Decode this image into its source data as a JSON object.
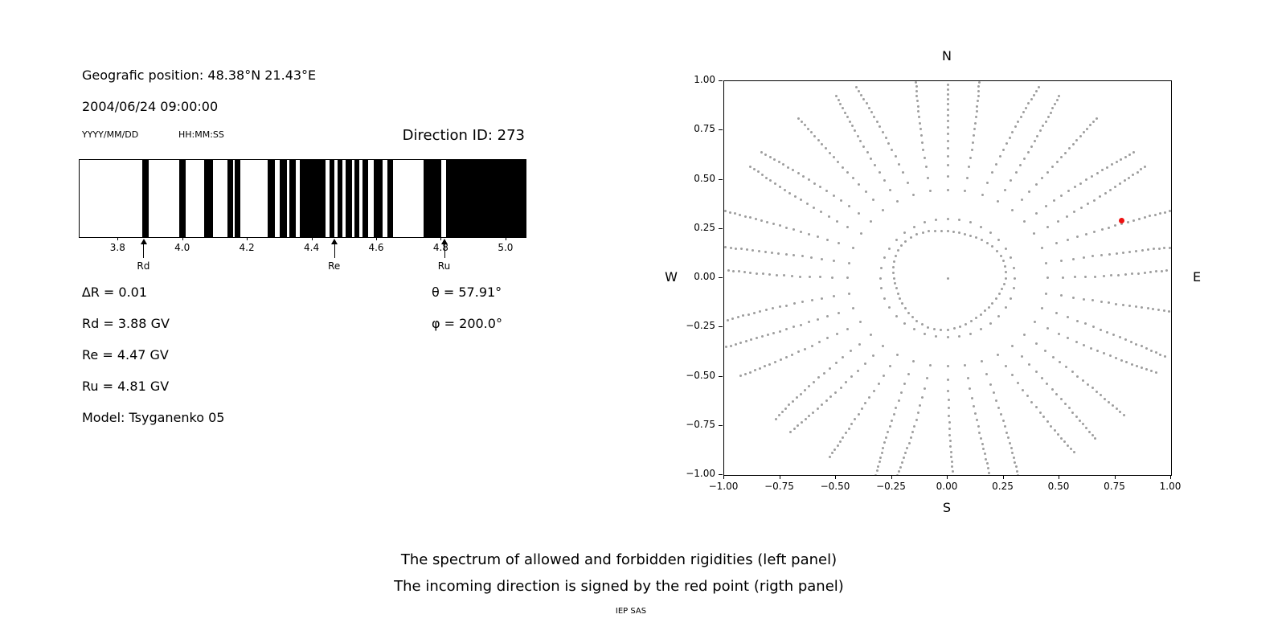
{
  "info": {
    "position": "Geografic position: 48.38°N 21.43°E",
    "datetime": "2004/06/24 09:00:00",
    "date_format_label": "YYYY/MM/DD",
    "time_format_label": "HH:MM:SS",
    "direction_id": "Direction ID: 273",
    "delta_r": "∆R = 0.01",
    "rd": "Rd = 3.88 GV",
    "re": "Re = 4.47 GV",
    "ru": "Ru = 4.81 GV",
    "model": "Model: Tsyganenko 05",
    "theta": "θ = 57.91°",
    "phi": "φ = 200.0°"
  },
  "caption": {
    "line1": "The spectrum of allowed and forbidden rigidities (left panel)",
    "line2": "The incoming direction is signed by the red point (rigth panel)",
    "credit": "IEP SAS"
  },
  "chart_data": [
    {
      "type": "bar",
      "subtype": "rigidity-spectrum-barcode",
      "description": "Black bands = forbidden rigidities, white = allowed",
      "xlim": [
        3.68,
        5.06
      ],
      "xticks": [
        3.8,
        4.0,
        4.2,
        4.4,
        4.6,
        4.8,
        5.0
      ],
      "band_color": "#000000",
      "background_color": "#ffffff",
      "forbidden_bands_gv": [
        [
          3.875,
          3.893
        ],
        [
          3.988,
          4.008
        ],
        [
          4.066,
          4.092
        ],
        [
          4.138,
          4.155
        ],
        [
          4.16,
          4.178
        ],
        [
          4.262,
          4.284
        ],
        [
          4.3,
          4.322
        ],
        [
          4.33,
          4.348
        ],
        [
          4.362,
          4.44
        ],
        [
          4.452,
          4.468
        ],
        [
          4.478,
          4.494
        ],
        [
          4.504,
          4.524
        ],
        [
          4.53,
          4.546
        ],
        [
          4.556,
          4.572
        ],
        [
          4.59,
          4.616
        ],
        [
          4.632,
          4.65
        ],
        [
          4.744,
          4.8
        ],
        [
          4.814,
          5.06
        ]
      ],
      "markers": [
        {
          "label": "Rd",
          "value_gv": 3.88
        },
        {
          "label": "Re",
          "value_gv": 4.47
        },
        {
          "label": "Ru",
          "value_gv": 4.81
        }
      ]
    },
    {
      "type": "scatter",
      "subtype": "incoming-direction-map",
      "compass": {
        "top": "N",
        "bottom": "S",
        "left": "W",
        "right": "E"
      },
      "xlim": [
        -1,
        1
      ],
      "ylim": [
        -1,
        1
      ],
      "xticks": [
        -1,
        -0.75,
        -0.5,
        -0.25,
        0,
        0.25,
        0.5,
        0.75,
        1
      ],
      "yticks": [
        -1,
        -0.75,
        -0.5,
        -0.25,
        0,
        0.25,
        0.5,
        0.75,
        1
      ],
      "grid": false,
      "dot_color": "#9e9e9e",
      "red_point": {
        "x": 0.78,
        "y": 0.29,
        "color": "#ee1111"
      },
      "dot_pattern": {
        "center_dot": true,
        "inner_ring": {
          "radius": 0.25,
          "points": 56
        },
        "spokes": {
          "count": 36,
          "r_start": 0.3,
          "r_end": 1.05,
          "points_per_spoke": 20,
          "outer_clustering_exponent": 0.55
        }
      }
    }
  ]
}
